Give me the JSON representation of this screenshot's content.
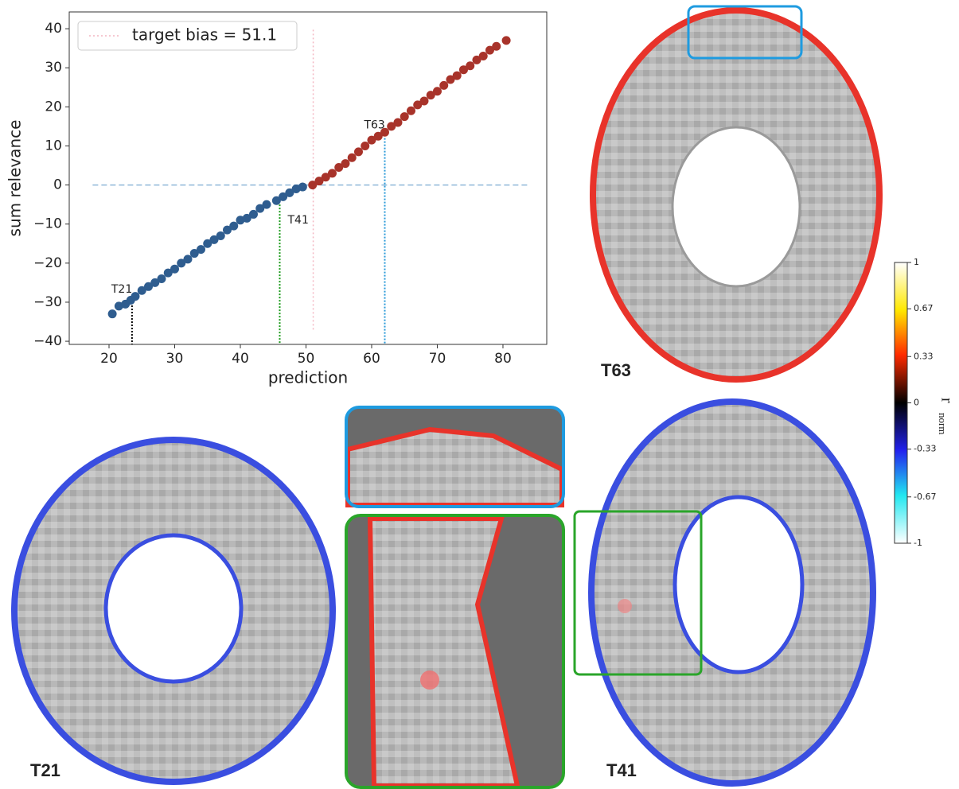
{
  "chart_data": {
    "type": "scatter",
    "xlabel": "prediction",
    "ylabel": "sum relevance",
    "xlim": [
      13.94,
      86.67
    ],
    "ylim": [
      -40.8,
      44.3
    ],
    "xticks": [
      20,
      30,
      40,
      50,
      60,
      70,
      80
    ],
    "yticks": [
      {
        "value": -40,
        "label": "−40"
      },
      {
        "value": -30,
        "label": "−30"
      },
      {
        "value": -20,
        "label": "−20"
      },
      {
        "value": -10,
        "label": "−10"
      },
      0,
      10,
      20,
      30,
      40
    ],
    "series": [
      {
        "color": "#2f5d8f",
        "x": [
          20.5,
          21.5,
          22.5,
          23.3,
          24,
          25,
          26,
          27,
          28,
          29,
          30,
          31,
          32,
          33,
          34,
          35,
          36,
          37,
          38,
          39,
          40,
          41,
          42,
          43,
          44,
          45.5,
          46.5,
          47.5,
          48.5,
          49.5
        ],
        "values": [
          -33,
          -31,
          -30.5,
          -29.5,
          -28.5,
          -27,
          -26,
          -25,
          -24,
          -22.5,
          -21.5,
          -20,
          -19,
          -17.5,
          -16.5,
          -15,
          -14,
          -13,
          -11.5,
          -10.5,
          -9,
          -8.5,
          -7.5,
          -6,
          -5,
          -4,
          -3,
          -2,
          -1,
          -0.5
        ]
      },
      {
        "color": "#a8332a",
        "x": [
          51,
          52,
          53,
          54,
          55,
          56,
          57,
          58,
          59,
          60,
          61,
          62,
          63,
          64,
          65,
          66,
          67,
          68,
          69,
          70,
          71,
          72,
          73,
          74,
          75,
          76,
          77,
          78,
          79,
          80.5
        ],
        "values": [
          0,
          1,
          2,
          3,
          4.5,
          5.5,
          7,
          8.5,
          10,
          11.5,
          12.5,
          13.5,
          15,
          16,
          17.5,
          19,
          20.5,
          21.5,
          23,
          24,
          25.5,
          27,
          28,
          29.5,
          30.5,
          32,
          33,
          34.5,
          35.5,
          37
        ]
      }
    ],
    "hline": {
      "y": 0,
      "xmin": 17.5,
      "xmax": 84,
      "color": "#8fb8d8"
    },
    "reference_line": {
      "name": "target bias = 51.1",
      "x": 51.1,
      "ymin": -37,
      "ymax": 40,
      "color": "#f4b6c2"
    },
    "markers": [
      {
        "label": "T21",
        "x": 23.5,
        "y": -30,
        "color": "#000000"
      },
      {
        "label": "T41",
        "x": 46,
        "y": -5,
        "color": "#1a9a1a"
      },
      {
        "label": "T63",
        "x": 62,
        "y": 12,
        "color": "#2a9ad8"
      }
    ]
  },
  "panels": [
    "T63",
    "T21",
    "T41"
  ],
  "colorbar": {
    "label": "r",
    "label_sub": "norm",
    "lim": [
      -1,
      1
    ],
    "ticks": [
      1,
      0.67,
      0.33,
      0,
      -0.33,
      -0.67,
      -1
    ]
  }
}
